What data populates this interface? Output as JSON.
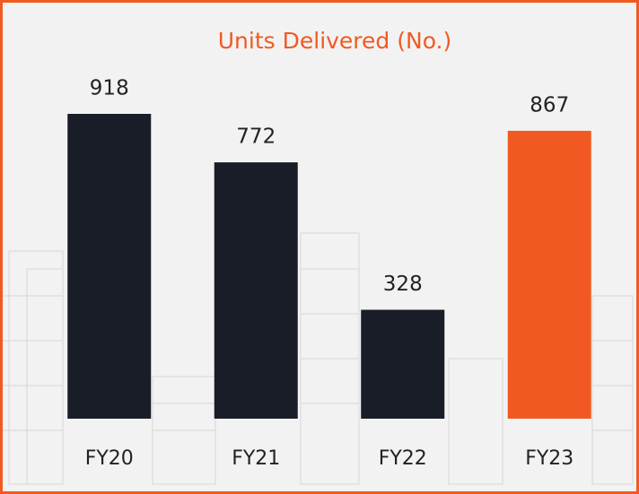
{
  "chart_data": {
    "type": "bar",
    "title": "Units Delivered (No.)",
    "categories": [
      "FY20",
      "FY21",
      "FY22",
      "FY23"
    ],
    "values": [
      918,
      772,
      328,
      867
    ],
    "colors": [
      "#181d27",
      "#181d27",
      "#181d27",
      "#f05a22"
    ],
    "title_color": "#f05a22"
  }
}
